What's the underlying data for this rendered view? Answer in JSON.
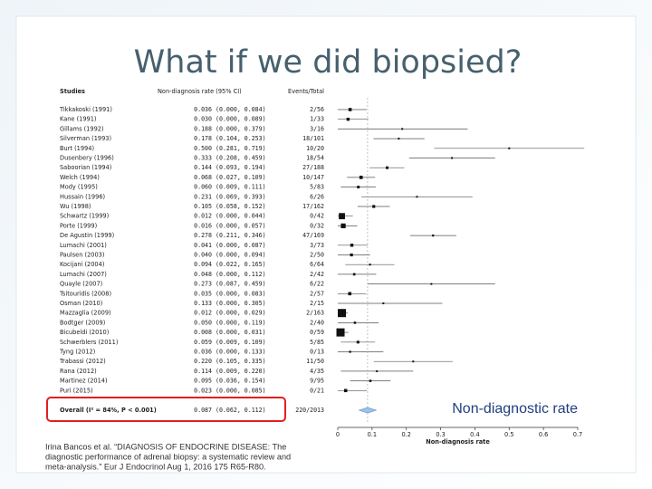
{
  "title": "What if we did biopsied?",
  "forest": {
    "headers": {
      "studies": "Studies",
      "rate": "Non-diagnosis rate (95% CI)",
      "events": "Events/Total"
    },
    "studies": [
      {
        "name": "Tikkakoski (1991)",
        "rate": "0.036",
        "ci": "(0.000, 0.084)",
        "events": "2/56"
      },
      {
        "name": "Kane (1991)",
        "rate": "0.030",
        "ci": "(0.000, 0.089)",
        "events": "1/33"
      },
      {
        "name": "Gillams (1992)",
        "rate": "0.188",
        "ci": "(0.000, 0.379)",
        "events": "3/16"
      },
      {
        "name": "Silverman (1993)",
        "rate": "0.178",
        "ci": "(0.104, 0.253)",
        "events": "18/101"
      },
      {
        "name": "Burt (1994)",
        "rate": "0.500",
        "ci": "(0.281, 0.719)",
        "events": "10/20"
      },
      {
        "name": "Dusenbery (1996)",
        "rate": "0.333",
        "ci": "(0.208, 0.459)",
        "events": "18/54"
      },
      {
        "name": "Saboorian (1994)",
        "rate": "0.144",
        "ci": "(0.093, 0.194)",
        "events": "27/188"
      },
      {
        "name": "Welch (1994)",
        "rate": "0.068",
        "ci": "(0.027, 0.109)",
        "events": "10/147"
      },
      {
        "name": "Mody (1995)",
        "rate": "0.060",
        "ci": "(0.009, 0.111)",
        "events": "5/83"
      },
      {
        "name": "Hussain (1996)",
        "rate": "0.231",
        "ci": "(0.069, 0.393)",
        "events": "6/26"
      },
      {
        "name": "Wu (1998)",
        "rate": "0.105",
        "ci": "(0.058, 0.152)",
        "events": "17/162"
      },
      {
        "name": "Schwartz (1999)",
        "rate": "0.012",
        "ci": "(0.000, 0.044)",
        "events": "0/42"
      },
      {
        "name": "Porte (1999)",
        "rate": "0.016",
        "ci": "(0.000, 0.057)",
        "events": "0/32"
      },
      {
        "name": "De Agustin (1999)",
        "rate": "0.278",
        "ci": "(0.211, 0.346)",
        "events": "47/169"
      },
      {
        "name": "Lumachi (2001)",
        "rate": "0.041",
        "ci": "(0.000, 0.087)",
        "events": "3/73"
      },
      {
        "name": "Paulsen (2003)",
        "rate": "0.040",
        "ci": "(0.000, 0.094)",
        "events": "2/50"
      },
      {
        "name": "Kocijani (2004)",
        "rate": "0.094",
        "ci": "(0.022, 0.165)",
        "events": "6/64"
      },
      {
        "name": "Lumachi (2007)",
        "rate": "0.048",
        "ci": "(0.000, 0.112)",
        "events": "2/42"
      },
      {
        "name": "Quayle (2007)",
        "rate": "0.273",
        "ci": "(0.087, 0.459)",
        "events": "6/22"
      },
      {
        "name": "Tsitouridis (2008)",
        "rate": "0.035",
        "ci": "(0.000, 0.083)",
        "events": "2/57"
      },
      {
        "name": "Osman (2010)",
        "rate": "0.133",
        "ci": "(0.000, 0.305)",
        "events": "2/15"
      },
      {
        "name": "Mazzaglia (2009)",
        "rate": "0.012",
        "ci": "(0.000, 0.029)",
        "events": "2/163"
      },
      {
        "name": "Bodtger (2009)",
        "rate": "0.050",
        "ci": "(0.000, 0.119)",
        "events": "2/40"
      },
      {
        "name": "Bicubeldi (2010)",
        "rate": "0.008",
        "ci": "(0.000, 0.031)",
        "events": "0/59"
      },
      {
        "name": "Schwerblers (2011)",
        "rate": "0.059",
        "ci": "(0.009, 0.109)",
        "events": "5/85"
      },
      {
        "name": "Tyng (2012)",
        "rate": "0.036",
        "ci": "(0.000, 0.133)",
        "events": "0/13"
      },
      {
        "name": "Trabassi (2012)",
        "rate": "0.220",
        "ci": "(0.105, 0.335)",
        "events": "11/50"
      },
      {
        "name": "Rana (2012)",
        "rate": "0.114",
        "ci": "(0.009, 0.220)",
        "events": "4/35"
      },
      {
        "name": "Martinez (2014)",
        "rate": "0.095",
        "ci": "(0.036, 0.154)",
        "events": "9/95"
      },
      {
        "name": "Puri (2015)",
        "rate": "0.023",
        "ci": "(0.000, 0.085)",
        "events": "0/21"
      }
    ],
    "overall": {
      "name": "Overall (I² = 84%, P < 0.001)",
      "rate": "0.087",
      "ci": "(0.062, 0.112)",
      "events": "220/2013"
    },
    "xlim": [
      0,
      0.7
    ],
    "xticks": [
      0,
      0.1,
      0.2,
      0.3,
      0.4,
      0.5,
      0.6,
      0.7
    ],
    "xlabel": "Non-diagnosis rate"
  },
  "annotation": "Non-diagnostic rate",
  "citation": [
    "Irina Bancos et al. “DIAGNOSIS OF ENDOCRINE DISEASE: The",
    "diagnostic performance of adrenal biopsy: a systematic review and",
    "meta-analysis.” Eur J Endocrinol Aug 1, 2016 175 R65-R80."
  ]
}
